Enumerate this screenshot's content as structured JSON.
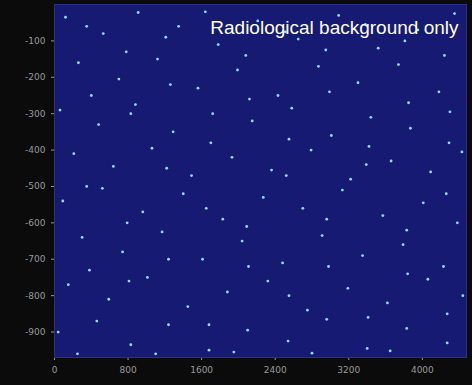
{
  "chart_data": {
    "type": "scatter",
    "annotations": [
      {
        "text": "Radiological background only"
      }
    ],
    "color": "#8fdcf5",
    "xlim": [
      0,
      4480
    ],
    "ylim": [
      -970,
      0
    ],
    "xticks": [
      0,
      800,
      1600,
      2400,
      3200,
      4000
    ],
    "yticks": [
      -100,
      -200,
      -300,
      -400,
      -500,
      -600,
      -700,
      -800,
      -900
    ],
    "x": [
      120,
      530,
      910,
      1350,
      1780,
      2210,
      2650,
      3090,
      3520,
      3950,
      4350,
      260,
      700,
      1120,
      1560,
      1990,
      2430,
      2870,
      3300,
      3740,
      4180,
      60,
      480,
      880,
      1290,
      1720,
      2150,
      2580,
      3010,
      3440,
      3870,
      4300,
      210,
      640,
      1060,
      1490,
      1930,
      2360,
      2790,
      3220,
      3660,
      4090,
      4430,
      90,
      520,
      960,
      1400,
      1830,
      2270,
      2700,
      3130,
      3570,
      4010,
      4380,
      300,
      740,
      1170,
      1610,
      2040,
      2480,
      2910,
      3350,
      3790,
      4230,
      150,
      590,
      1010,
      1450,
      1880,
      2320,
      2750,
      3190,
      3620,
      4060,
      4440,
      40,
      460,
      830,
      1240,
      1680,
      2100,
      2540,
      2960,
      3400,
      3830,
      4270,
      350,
      780,
      1210,
      1640,
      2080,
      2510,
      2950,
      3380,
      3810,
      4240,
      400,
      830,
      1260,
      1700,
      2120,
      2550,
      2990,
      3420,
      3850,
      4290,
      350,
      790,
      1220,
      1650,
      2090,
      2520,
      2960,
      3390,
      3830,
      4260,
      380,
      810,
      1240,
      1680,
      2110,
      2550,
      2980,
      3410,
      3840,
      4270,
      250,
      1100,
      1950,
      2800,
      3650
    ],
    "values": [
      -35,
      -80,
      -22,
      -60,
      -110,
      -45,
      -95,
      -30,
      -120,
      -70,
      -25,
      -160,
      -205,
      -150,
      -230,
      -180,
      -250,
      -170,
      -215,
      -165,
      -240,
      -290,
      -330,
      -275,
      -350,
      -300,
      -320,
      -285,
      -360,
      -310,
      -340,
      -295,
      -410,
      -445,
      -395,
      -470,
      -420,
      -455,
      -400,
      -480,
      -430,
      -460,
      -405,
      -540,
      -505,
      -570,
      -520,
      -590,
      -530,
      -560,
      -510,
      -580,
      -545,
      -600,
      -640,
      -680,
      -625,
      -700,
      -650,
      -710,
      -635,
      -690,
      -660,
      -720,
      -770,
      -810,
      -750,
      -830,
      -790,
      -760,
      -840,
      -780,
      -820,
      -755,
      -800,
      -900,
      -870,
      -935,
      -880,
      -950,
      -895,
      -925,
      -865,
      -945,
      -890,
      -930,
      -60,
      -130,
      -90,
      -20,
      -140,
      -75,
      -125,
      -55,
      -100,
      -140,
      -250,
      -300,
      -220,
      -380,
      -260,
      -370,
      -240,
      -390,
      -270,
      -380,
      -500,
      -600,
      -450,
      -560,
      -610,
      -470,
      -590,
      -440,
      -620,
      -520,
      -730,
      -760,
      -700,
      -880,
      -720,
      -800,
      -720,
      -860,
      -740,
      -850,
      -960,
      -960,
      -955,
      -958,
      -952
    ]
  }
}
